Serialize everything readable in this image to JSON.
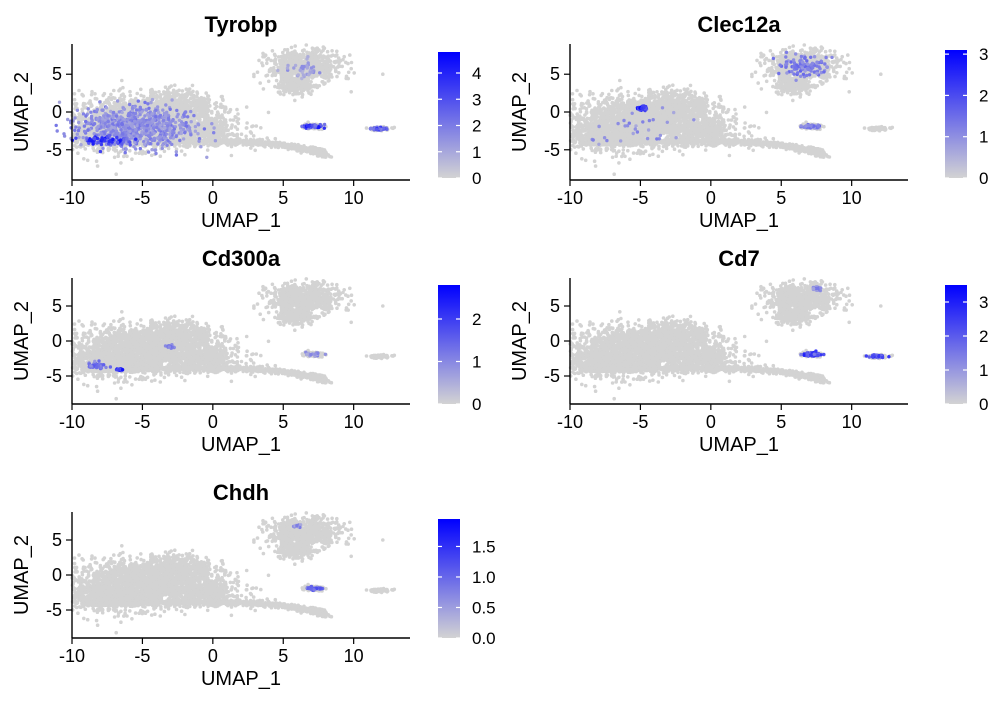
{
  "colors": {
    "low": "#d3d3d3",
    "high": "#0000ff",
    "axis": "#000000"
  },
  "chart_data": [
    {
      "type": "scatter",
      "title": "Tyrobp",
      "xlabel": "UMAP_1",
      "ylabel": "UMAP_2",
      "xlim": [
        -10,
        14
      ],
      "ylim": [
        -9,
        9
      ],
      "xticks": [
        -10,
        -5,
        0,
        5,
        10
      ],
      "yticks": [
        -5,
        0,
        5
      ],
      "grid": false,
      "legend": {
        "position": "right",
        "title": "",
        "min": 0,
        "max": 4.8,
        "ticks": [
          0,
          1,
          2,
          3,
          4
        ]
      },
      "expression_regions": [
        {
          "x": -5.5,
          "y": -2,
          "spread": [
            3.3,
            2.2
          ],
          "level": 2,
          "density": 0.55
        },
        {
          "x": -7.5,
          "y": -3.8,
          "spread": [
            1.4,
            0.5
          ],
          "level": 4,
          "density": 0.4
        },
        {
          "x": 7.2,
          "y": -1.9,
          "spread": [
            0.5,
            0.2
          ],
          "level": 4,
          "density": 0.9
        },
        {
          "x": 11.8,
          "y": -2.2,
          "spread": [
            0.5,
            0.15
          ],
          "level": 3.5,
          "density": 0.8
        },
        {
          "x": 6.3,
          "y": 5.5,
          "spread": [
            1.2,
            1.2
          ],
          "level": 1.5,
          "density": 0.12
        }
      ]
    },
    {
      "type": "scatter",
      "title": "Clec12a",
      "xlabel": "UMAP_1",
      "ylabel": "UMAP_2",
      "xlim": [
        -10,
        14
      ],
      "ylim": [
        -9,
        9
      ],
      "xticks": [
        -10,
        -5,
        0,
        5,
        10
      ],
      "yticks": [
        -5,
        0,
        5
      ],
      "grid": false,
      "legend": {
        "position": "right",
        "title": "",
        "min": 0,
        "max": 3.1,
        "ticks": [
          0,
          1,
          2,
          3
        ]
      },
      "expression_regions": [
        {
          "x": 6.5,
          "y": 6,
          "spread": [
            1.4,
            1.0
          ],
          "level": 1.5,
          "density": 0.35
        },
        {
          "x": 7.2,
          "y": -1.9,
          "spread": [
            0.5,
            0.2
          ],
          "level": 1.5,
          "density": 0.6
        },
        {
          "x": -4.8,
          "y": 0.5,
          "spread": [
            0.3,
            0.2
          ],
          "level": 2.8,
          "density": 0.9
        },
        {
          "x": -5,
          "y": -2,
          "spread": [
            3,
            1.8
          ],
          "level": 1.2,
          "density": 0.03
        }
      ]
    },
    {
      "type": "scatter",
      "title": "Cd300a",
      "xlabel": "UMAP_1",
      "ylabel": "UMAP_2",
      "xlim": [
        -10,
        14
      ],
      "ylim": [
        -9,
        9
      ],
      "xticks": [
        -10,
        -5,
        0,
        5,
        10
      ],
      "yticks": [
        -5,
        0,
        5
      ],
      "grid": false,
      "legend": {
        "position": "right",
        "title": "",
        "min": 0,
        "max": 2.8,
        "ticks": [
          0,
          1,
          2
        ]
      },
      "expression_regions": [
        {
          "x": -8.2,
          "y": -3.5,
          "spread": [
            0.6,
            0.4
          ],
          "level": 1.5,
          "density": 0.5
        },
        {
          "x": -6.6,
          "y": -4.1,
          "spread": [
            0.15,
            0.1
          ],
          "level": 2.6,
          "density": 1
        },
        {
          "x": 7.2,
          "y": -1.9,
          "spread": [
            0.5,
            0.2
          ],
          "level": 1,
          "density": 0.3
        },
        {
          "x": -3,
          "y": -0.8,
          "spread": [
            0.2,
            0.2
          ],
          "level": 1.2,
          "density": 0.4
        }
      ]
    },
    {
      "type": "scatter",
      "title": "Cd7",
      "xlabel": "UMAP_1",
      "ylabel": "UMAP_2",
      "xlim": [
        -10,
        14
      ],
      "ylim": [
        -9,
        9
      ],
      "xticks": [
        -10,
        -5,
        0,
        5,
        10
      ],
      "yticks": [
        -5,
        0,
        5
      ],
      "grid": false,
      "legend": {
        "position": "right",
        "title": "",
        "min": 0,
        "max": 3.5,
        "ticks": [
          0,
          1,
          2,
          3
        ]
      },
      "expression_regions": [
        {
          "x": 7.2,
          "y": -1.9,
          "spread": [
            0.5,
            0.2
          ],
          "level": 2.8,
          "density": 0.95
        },
        {
          "x": 11.8,
          "y": -2.2,
          "spread": [
            0.5,
            0.15
          ],
          "level": 2.5,
          "density": 0.85
        },
        {
          "x": 7.5,
          "y": 7.5,
          "spread": [
            0.2,
            0.2
          ],
          "level": 1.5,
          "density": 0.5
        }
      ]
    },
    {
      "type": "scatter",
      "title": "Chdh",
      "xlabel": "UMAP_1",
      "ylabel": "UMAP_2",
      "xlim": [
        -10,
        14
      ],
      "ylim": [
        -9,
        9
      ],
      "xticks": [
        -10,
        -5,
        0,
        5,
        10
      ],
      "yticks": [
        -5,
        0,
        5
      ],
      "grid": false,
      "legend": {
        "position": "right",
        "title": "",
        "min": 0,
        "max": 1.95,
        "ticks": [
          "0.0",
          "0.5",
          "1.0",
          "1.5"
        ]
      },
      "expression_regions": [
        {
          "x": 7.2,
          "y": -1.9,
          "spread": [
            0.5,
            0.2
          ],
          "level": 1.2,
          "density": 0.7
        },
        {
          "x": 6,
          "y": 7,
          "spread": [
            0.2,
            0.2
          ],
          "level": 0.8,
          "density": 0.3
        }
      ]
    }
  ]
}
